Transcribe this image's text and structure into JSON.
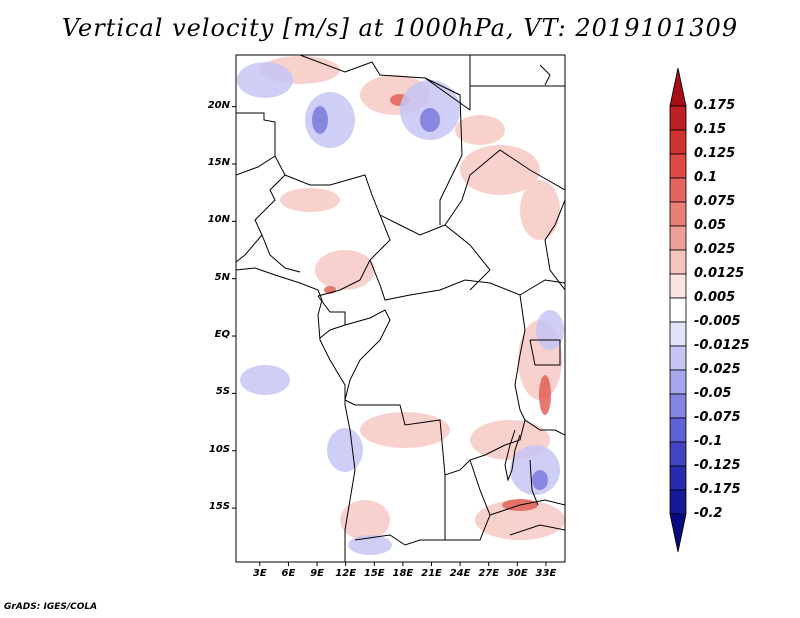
{
  "title": "Vertical velocity [m/s] at 1000hPa, VT: 2019101309",
  "credit": "GrADS: IGES/COLA",
  "map": {
    "lat_labels": [
      "20N",
      "15N",
      "10N",
      "5N",
      "EQ",
      "5S",
      "10S",
      "15S"
    ],
    "lat_values": [
      20,
      15,
      10,
      5,
      0,
      -5,
      -10,
      -15
    ],
    "lon_labels": [
      "3E",
      "6E",
      "9E",
      "12E",
      "15E",
      "18E",
      "21E",
      "24E",
      "27E",
      "30E",
      "33E"
    ],
    "lon_values": [
      3,
      6,
      9,
      12,
      15,
      18,
      21,
      24,
      27,
      30,
      33
    ],
    "extent": {
      "lon_min": 0.5,
      "lon_max": 35.0,
      "lat_min": -19.7,
      "lat_max": 24.5
    }
  },
  "colorbar": {
    "labels": [
      "0.175",
      "0.15",
      "0.125",
      "0.1",
      "0.075",
      "0.05",
      "0.025",
      "0.0125",
      "0.005",
      "-0.005",
      "-0.0125",
      "-0.025",
      "-0.05",
      "-0.075",
      "-0.1",
      "-0.125",
      "-0.175",
      "-0.2"
    ],
    "colors": [
      "#a50f15",
      "#bd1f24",
      "#d0322f",
      "#dd4a43",
      "#e3655c",
      "#e88078",
      "#ee9f99",
      "#f5c4c0",
      "#fbe3e1",
      "#ffffff",
      "#e3e3fb",
      "#c6c6f5",
      "#a7a7ee",
      "#8484e3",
      "#6060d6",
      "#4343c4",
      "#2a2ab0",
      "#17179a",
      "#0a0a80"
    ]
  }
}
